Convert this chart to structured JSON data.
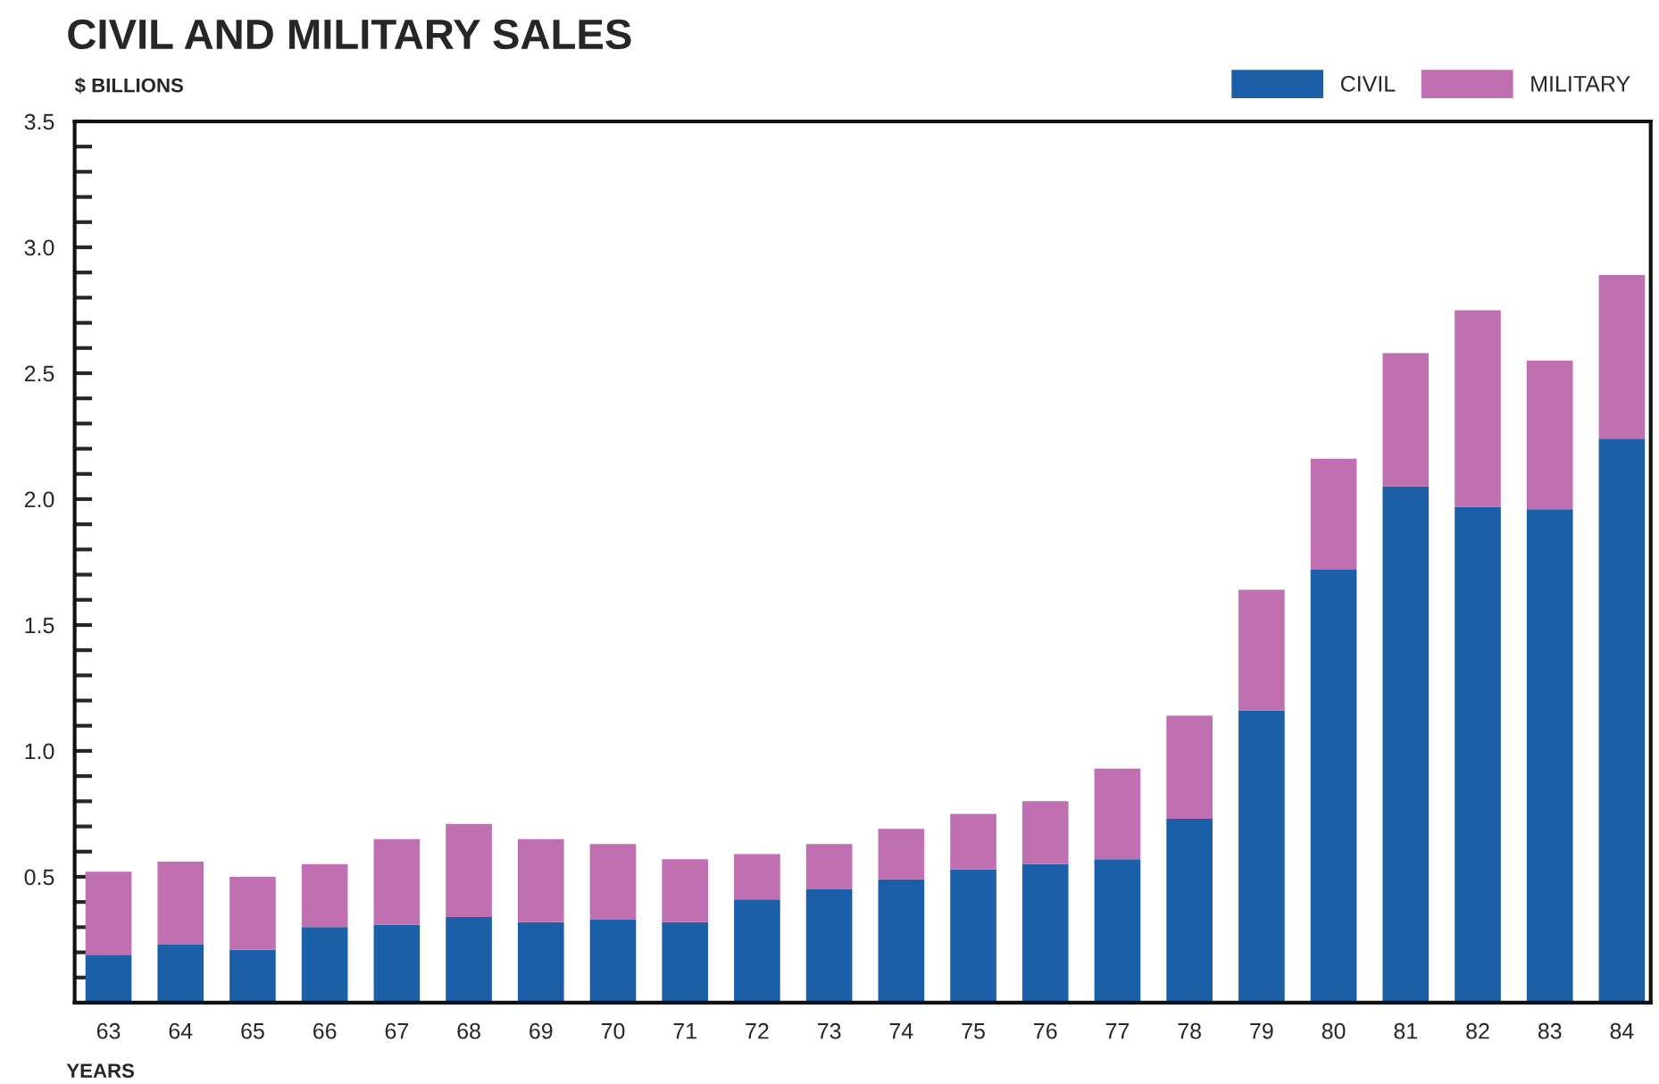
{
  "chart_data": {
    "type": "bar",
    "title": "CIVIL AND MILITARY SALES",
    "ylabel": "$ BILLIONS",
    "xlabel": "YEARS",
    "categories": [
      "63",
      "64",
      "65",
      "66",
      "67",
      "68",
      "69",
      "70",
      "71",
      "72",
      "73",
      "74",
      "75",
      "76",
      "77",
      "78",
      "79",
      "80",
      "81",
      "82",
      "83",
      "84"
    ],
    "stacked": true,
    "series": [
      {
        "name": "CIVIL",
        "color": "#1a5fa8",
        "values": [
          0.19,
          0.23,
          0.21,
          0.3,
          0.31,
          0.34,
          0.32,
          0.33,
          0.32,
          0.41,
          0.45,
          0.49,
          0.53,
          0.55,
          0.57,
          0.73,
          1.16,
          1.72,
          2.05,
          1.97,
          1.96,
          2.24
        ]
      },
      {
        "name": "MILITARY",
        "color": "#c070b0",
        "values": [
          0.33,
          0.33,
          0.29,
          0.25,
          0.34,
          0.37,
          0.33,
          0.3,
          0.25,
          0.18,
          0.18,
          0.2,
          0.22,
          0.25,
          0.36,
          0.41,
          0.48,
          0.44,
          0.53,
          0.78,
          0.59,
          0.65
        ]
      }
    ],
    "ylim": [
      0,
      3.5
    ],
    "yticks": [
      {
        "value": 0.1,
        "label": null
      },
      {
        "value": 0.2,
        "label": null
      },
      {
        "value": 0.3,
        "label": null
      },
      {
        "value": 0.4,
        "label": null
      },
      "0.5",
      {
        "value": 0.6,
        "label": null
      },
      {
        "value": 0.7,
        "label": null
      },
      {
        "value": 0.8,
        "label": null
      },
      {
        "value": 0.9,
        "label": null
      },
      {
        "value": 1.0,
        "label": "1.0"
      },
      {
        "value": 1.1,
        "label": null
      },
      {
        "value": 1.2,
        "label": null
      },
      {
        "value": 1.3,
        "label": null
      },
      {
        "value": 1.4,
        "label": null
      },
      1.5,
      {
        "value": 1.6,
        "label": null
      },
      {
        "value": 1.7,
        "label": null
      },
      {
        "value": 1.8,
        "label": null
      },
      {
        "value": 1.9,
        "label": null
      },
      {
        "value": 2.0,
        "label": "2.0"
      },
      {
        "value": 2.1,
        "label": null
      },
      {
        "value": 2.2,
        "label": null
      },
      {
        "value": 2.3,
        "label": null
      },
      {
        "value": 2.4,
        "label": null
      },
      2.5,
      {
        "value": 2.6,
        "label": null
      },
      {
        "value": 2.7,
        "label": null
      },
      {
        "value": 2.8,
        "label": null
      },
      {
        "value": 2.9,
        "label": null
      },
      {
        "value": 3.0,
        "label": "3.0"
      },
      {
        "value": 3.1,
        "label": null
      },
      {
        "value": 3.2,
        "label": null
      },
      {
        "value": 3.3,
        "label": null
      },
      {
        "value": 3.4,
        "label": null
      },
      3.5
    ],
    "grid": false,
    "legend": "top right"
  }
}
